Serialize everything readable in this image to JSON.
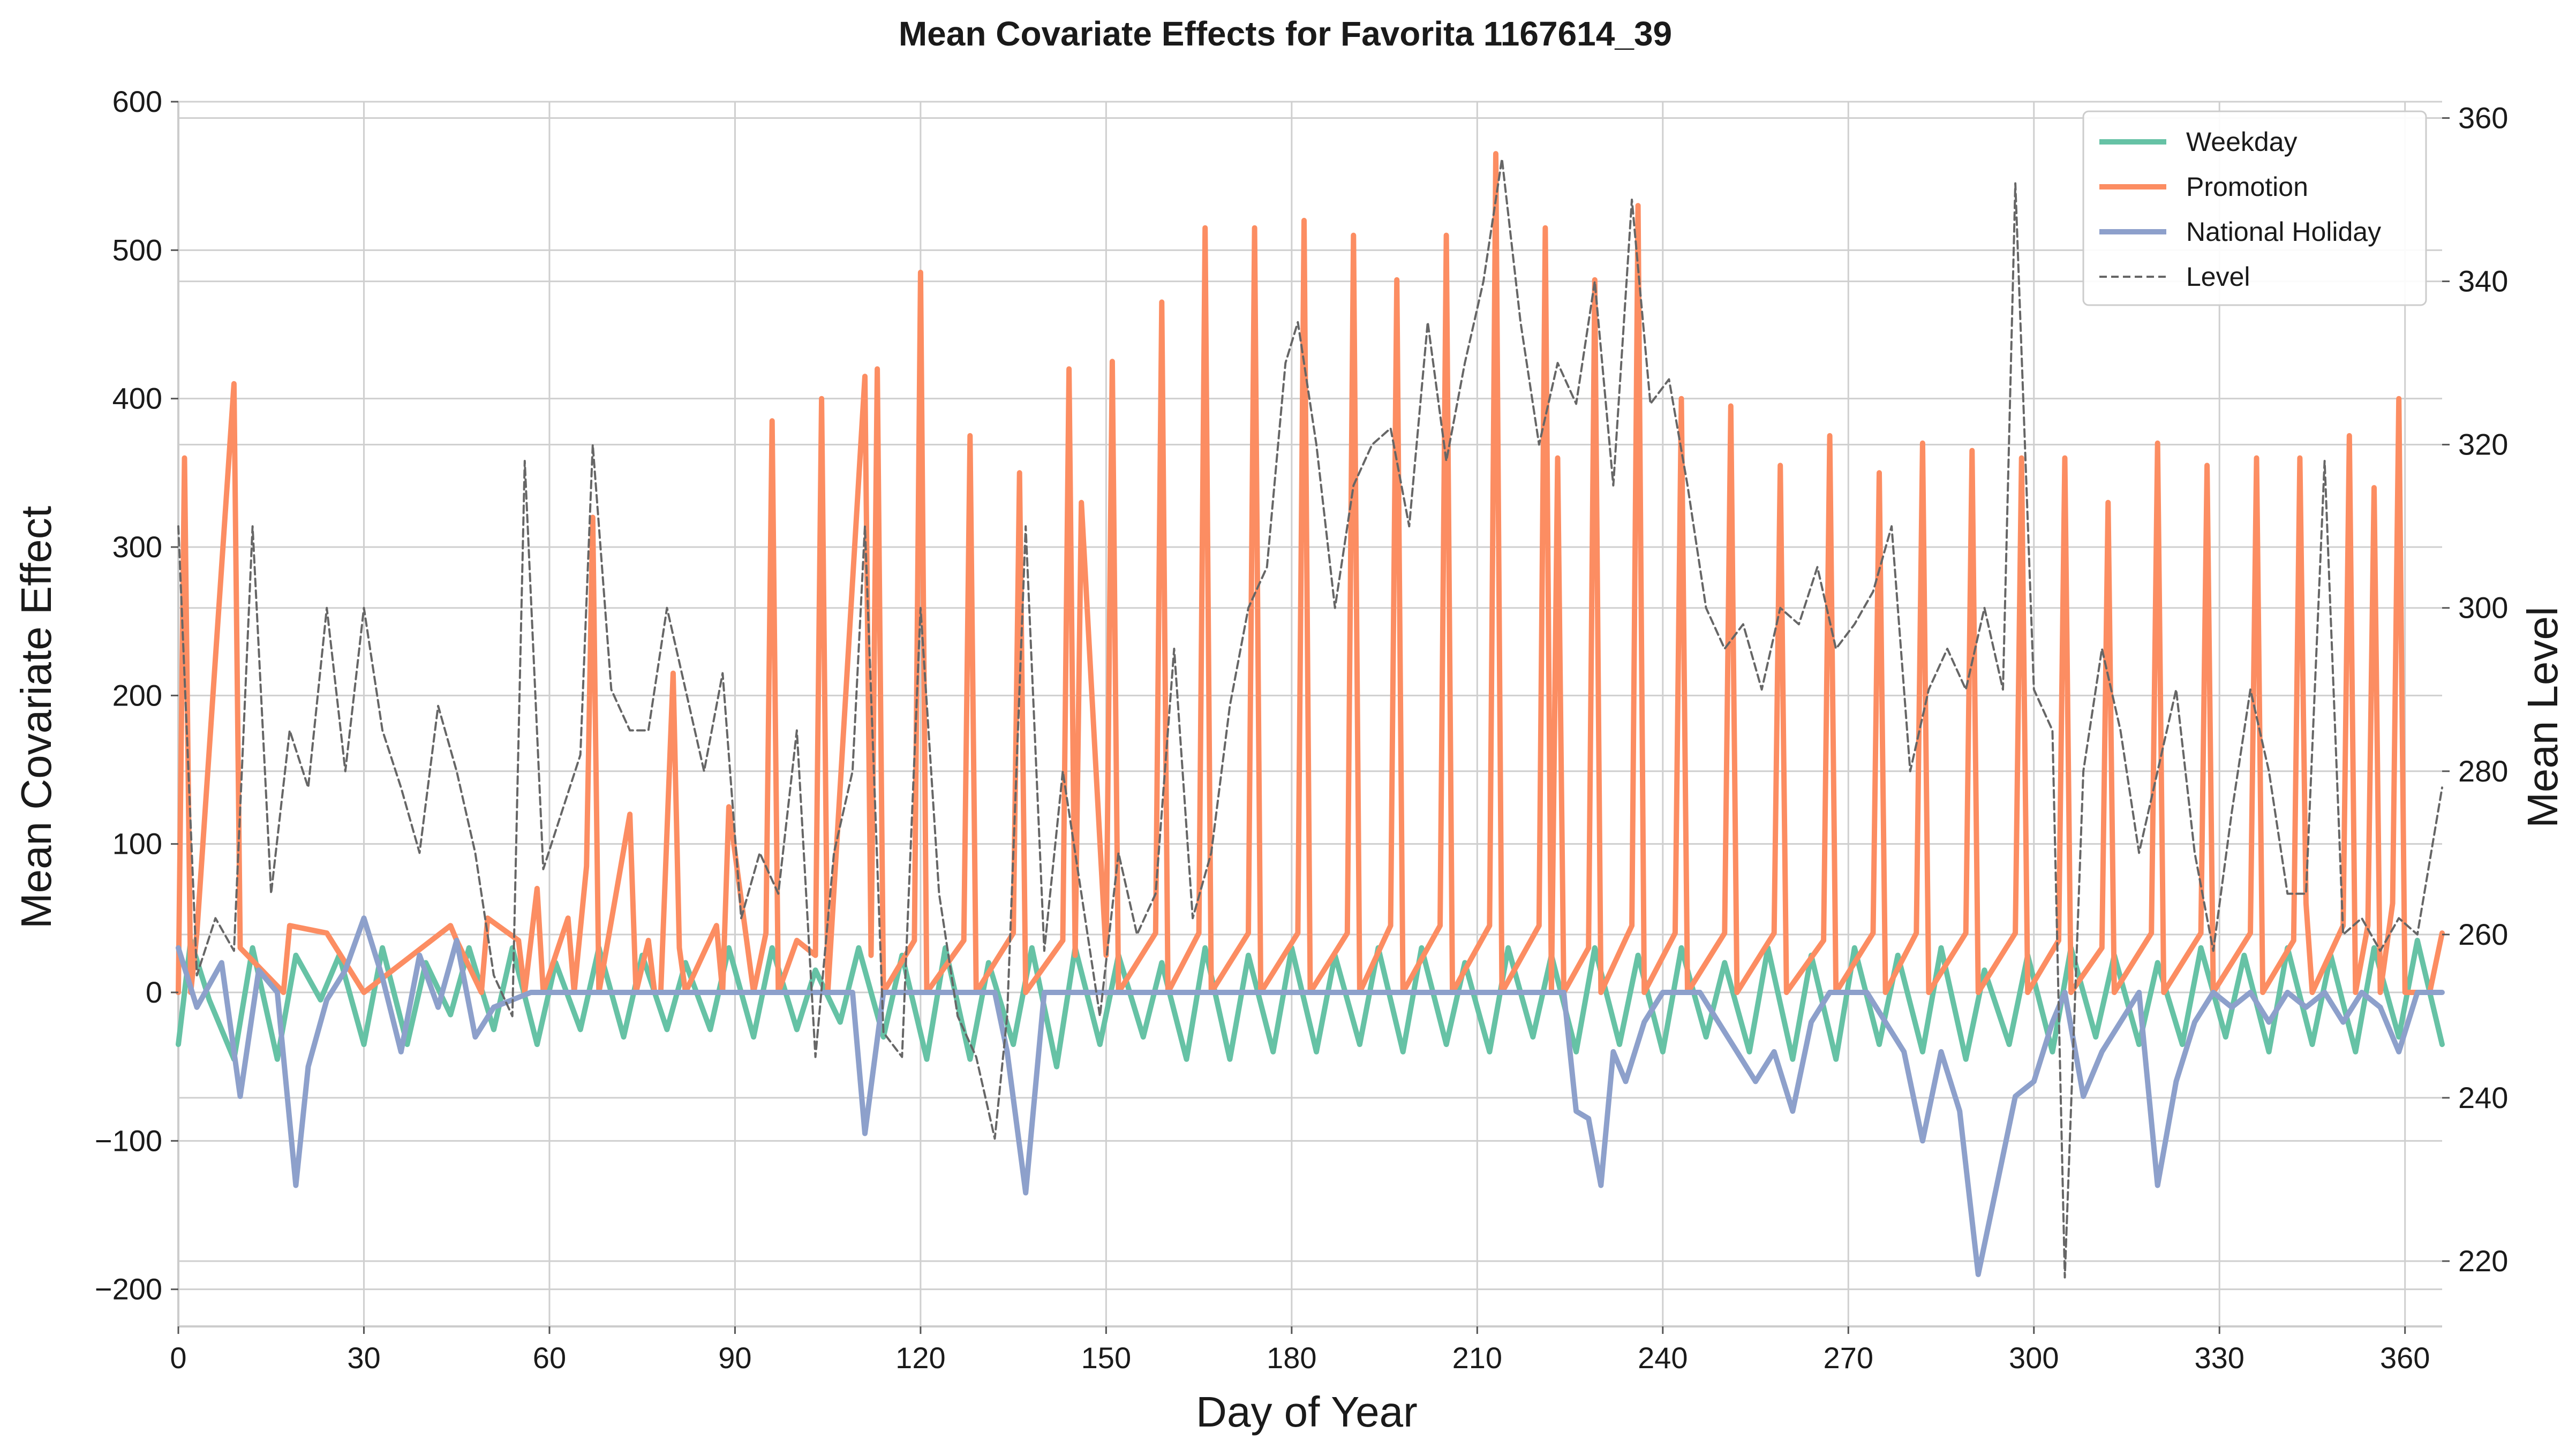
{
  "chart_data": {
    "type": "line",
    "title": "Mean Covariate Effects for Favorita 1167614_39",
    "xlabel": "Day of Year",
    "ylabel": "Mean Covariate Effect",
    "y2label": "Mean Level",
    "xlim": [
      0,
      366
    ],
    "ylim": [
      -225,
      600
    ],
    "y2lim": [
      212,
      362
    ],
    "xticks": [
      0,
      30,
      60,
      90,
      120,
      150,
      180,
      210,
      240,
      270,
      300,
      330,
      360
    ],
    "yticks": [
      -200,
      -100,
      0,
      100,
      200,
      300,
      400,
      500,
      600
    ],
    "y2ticks": [
      220,
      240,
      260,
      280,
      300,
      320,
      340,
      360
    ],
    "grid": true,
    "legend_position": "top-right",
    "series": [
      {
        "name": "Weekday",
        "color": "#66c2a5",
        "axis": "left",
        "style": "solid",
        "x": [
          0,
          2,
          5,
          9,
          12,
          16,
          19,
          23,
          26,
          30,
          33,
          37,
          40,
          44,
          47,
          51,
          54,
          58,
          61,
          65,
          68,
          72,
          75,
          79,
          82,
          86,
          89,
          93,
          96,
          100,
          103,
          107,
          110,
          114,
          117,
          121,
          124,
          128,
          131,
          135,
          138,
          142,
          145,
          149,
          152,
          156,
          159,
          163,
          166,
          170,
          173,
          177,
          180,
          184,
          187,
          191,
          194,
          198,
          201,
          205,
          208,
          212,
          215,
          219,
          222,
          226,
          229,
          233,
          236,
          240,
          243,
          247,
          250,
          254,
          257,
          261,
          264,
          268,
          271,
          275,
          278,
          282,
          285,
          289,
          292,
          296,
          299,
          303,
          306,
          310,
          313,
          317,
          320,
          324,
          327,
          331,
          334,
          338,
          341,
          345,
          348,
          352,
          355,
          359,
          362,
          366
        ],
        "y": [
          -35,
          35,
          -5,
          -45,
          30,
          -45,
          25,
          -5,
          25,
          -35,
          30,
          -35,
          20,
          -15,
          30,
          -25,
          30,
          -35,
          20,
          -25,
          30,
          -30,
          25,
          -25,
          20,
          -25,
          30,
          -30,
          30,
          -25,
          15,
          -20,
          30,
          -30,
          25,
          -45,
          30,
          -45,
          20,
          -35,
          30,
          -50,
          30,
          -35,
          25,
          -30,
          20,
          -45,
          30,
          -45,
          25,
          -40,
          30,
          -40,
          25,
          -35,
          30,
          -40,
          30,
          -35,
          20,
          -40,
          30,
          -30,
          25,
          -40,
          30,
          -35,
          25,
          -40,
          30,
          -30,
          20,
          -40,
          30,
          -45,
          25,
          -45,
          30,
          -35,
          25,
          -40,
          30,
          -45,
          15,
          -35,
          25,
          -40,
          30,
          -30,
          25,
          -35,
          20,
          -35,
          30,
          -30,
          25,
          -40,
          30,
          -35,
          25,
          -40,
          30,
          -30,
          35,
          -35
        ]
      },
      {
        "name": "Promotion",
        "color": "#fc8d62",
        "axis": "left",
        "style": "solid",
        "x": [
          0,
          1,
          2,
          3,
          9,
          10,
          17,
          18,
          24,
          30,
          44,
          45,
          49,
          50,
          55,
          56,
          58,
          59,
          63,
          64,
          66,
          67,
          68,
          73,
          74,
          76,
          77,
          78,
          80,
          81,
          82,
          87,
          88,
          89,
          93,
          95,
          96,
          97,
          100,
          103,
          104,
          105,
          111,
          112,
          113,
          114,
          119,
          120,
          121,
          127,
          128,
          129,
          135,
          136,
          137,
          143,
          144,
          145,
          146,
          150,
          151,
          152,
          158,
          159,
          160,
          165,
          166,
          167,
          173,
          174,
          175,
          181,
          182,
          183,
          189,
          190,
          191,
          196,
          197,
          198,
          204,
          205,
          206,
          212,
          213,
          214,
          220,
          221,
          222,
          223,
          224,
          228,
          229,
          230,
          235,
          236,
          237,
          242,
          243,
          244,
          250,
          251,
          252,
          258,
          259,
          260,
          266,
          267,
          268,
          274,
          275,
          276,
          281,
          282,
          283,
          289,
          290,
          291,
          297,
          298,
          299,
          304,
          305,
          306,
          311,
          312,
          313,
          319,
          320,
          321,
          327,
          328,
          329,
          335,
          336,
          337,
          342,
          343,
          344,
          345,
          350,
          351,
          352,
          354,
          355,
          356,
          358,
          359,
          360,
          363,
          364,
          366
        ],
        "y": [
          0,
          360,
          0,
          40,
          410,
          30,
          0,
          45,
          40,
          0,
          45,
          35,
          0,
          50,
          35,
          0,
          70,
          0,
          50,
          0,
          85,
          320,
          0,
          120,
          0,
          35,
          0,
          0,
          215,
          30,
          0,
          45,
          0,
          125,
          0,
          40,
          385,
          0,
          35,
          25,
          400,
          0,
          415,
          25,
          420,
          0,
          35,
          485,
          0,
          35,
          375,
          0,
          40,
          350,
          0,
          35,
          420,
          25,
          330,
          25,
          425,
          0,
          40,
          465,
          0,
          40,
          515,
          0,
          40,
          515,
          0,
          40,
          520,
          0,
          40,
          510,
          0,
          45,
          480,
          0,
          45,
          510,
          0,
          45,
          565,
          0,
          45,
          515,
          0,
          360,
          0,
          30,
          480,
          0,
          45,
          530,
          0,
          40,
          400,
          0,
          40,
          395,
          0,
          40,
          355,
          0,
          35,
          375,
          0,
          40,
          350,
          0,
          40,
          370,
          0,
          40,
          365,
          0,
          40,
          360,
          0,
          35,
          360,
          0,
          30,
          330,
          0,
          40,
          370,
          0,
          40,
          355,
          0,
          40,
          360,
          0,
          35,
          360,
          60,
          0,
          45,
          375,
          0,
          45,
          340,
          0,
          60,
          400,
          0,
          0,
          0,
          40
        ]
      },
      {
        "name": "National Holiday",
        "color": "#8da0cb",
        "axis": "left",
        "style": "solid",
        "x": [
          0,
          3,
          7,
          10,
          13,
          16,
          19,
          21,
          24,
          27,
          30,
          33,
          36,
          39,
          42,
          45,
          48,
          51,
          54,
          57,
          60,
          64,
          67,
          70,
          73,
          76,
          79,
          82,
          85,
          88,
          91,
          94,
          97,
          100,
          103,
          106,
          109,
          111,
          114,
          117,
          120,
          123,
          126,
          129,
          132,
          134,
          137,
          140,
          143,
          146,
          200,
          203,
          206,
          209,
          212,
          215,
          218,
          221,
          224,
          226,
          228,
          230,
          232,
          234,
          237,
          240,
          243,
          246,
          249,
          252,
          255,
          258,
          261,
          264,
          267,
          270,
          273,
          276,
          279,
          282,
          285,
          288,
          291,
          294,
          297,
          300,
          303,
          305,
          308,
          311,
          314,
          317,
          320,
          323,
          326,
          329,
          332,
          335,
          338,
          341,
          344,
          347,
          350,
          353,
          356,
          359,
          362,
          366
        ],
        "y": [
          30,
          -10,
          20,
          -70,
          15,
          0,
          -130,
          -50,
          -5,
          15,
          50,
          10,
          -40,
          25,
          -10,
          35,
          -30,
          -10,
          -5,
          0,
          0,
          0,
          0,
          0,
          0,
          0,
          0,
          0,
          0,
          0,
          0,
          0,
          0,
          0,
          0,
          0,
          0,
          -95,
          0,
          0,
          0,
          0,
          0,
          0,
          0,
          -40,
          -135,
          0,
          0,
          0,
          0,
          0,
          0,
          0,
          0,
          0,
          0,
          0,
          0,
          -80,
          -85,
          -130,
          -40,
          -60,
          -20,
          0,
          0,
          0,
          -20,
          -40,
          -60,
          -40,
          -80,
          -20,
          0,
          0,
          0,
          -20,
          -40,
          -100,
          -40,
          -80,
          -190,
          -130,
          -70,
          -60,
          -20,
          0,
          -70,
          -40,
          -20,
          0,
          -130,
          -60,
          -20,
          0,
          -10,
          0,
          -20,
          0,
          -10,
          0,
          -20,
          0,
          -10,
          -40,
          0,
          0
        ]
      },
      {
        "name": "Level",
        "color": "#666666",
        "axis": "right",
        "style": "dashed",
        "x": [
          0,
          3,
          6,
          9,
          12,
          15,
          18,
          21,
          24,
          27,
          30,
          33,
          36,
          39,
          42,
          45,
          48,
          51,
          54,
          56,
          59,
          62,
          65,
          67,
          70,
          73,
          76,
          79,
          82,
          85,
          88,
          91,
          94,
          97,
          100,
          103,
          106,
          109,
          111,
          114,
          117,
          120,
          123,
          126,
          129,
          132,
          134,
          137,
          140,
          143,
          146,
          149,
          152,
          155,
          158,
          161,
          164,
          167,
          170,
          173,
          176,
          179,
          181,
          184,
          187,
          190,
          193,
          196,
          199,
          202,
          205,
          208,
          211,
          214,
          217,
          220,
          223,
          226,
          229,
          232,
          235,
          238,
          241,
          244,
          247,
          250,
          253,
          256,
          259,
          262,
          265,
          268,
          271,
          274,
          277,
          280,
          283,
          286,
          289,
          292,
          295,
          297,
          300,
          303,
          305,
          308,
          311,
          314,
          317,
          320,
          323,
          326,
          329,
          332,
          335,
          338,
          341,
          344,
          347,
          350,
          353,
          356,
          359,
          362,
          366
        ],
        "y": [
          310,
          255,
          262,
          258,
          310,
          265,
          285,
          278,
          300,
          280,
          300,
          285,
          278,
          270,
          288,
          280,
          270,
          255,
          250,
          318,
          268,
          275,
          282,
          320,
          290,
          285,
          285,
          300,
          290,
          280,
          292,
          262,
          270,
          265,
          285,
          245,
          270,
          280,
          310,
          248,
          245,
          300,
          265,
          250,
          245,
          235,
          250,
          310,
          258,
          280,
          265,
          250,
          270,
          260,
          265,
          295,
          262,
          270,
          288,
          300,
          305,
          330,
          335,
          320,
          300,
          315,
          320,
          322,
          310,
          335,
          318,
          330,
          340,
          355,
          335,
          320,
          330,
          325,
          340,
          315,
          350,
          325,
          328,
          315,
          300,
          295,
          298,
          290,
          300,
          298,
          305,
          295,
          298,
          302,
          310,
          280,
          290,
          295,
          290,
          300,
          290,
          352,
          290,
          285,
          218,
          280,
          295,
          285,
          270,
          280,
          290,
          270,
          258,
          275,
          290,
          280,
          265,
          265,
          318,
          260,
          262,
          258,
          262,
          260,
          278
        ]
      }
    ]
  }
}
